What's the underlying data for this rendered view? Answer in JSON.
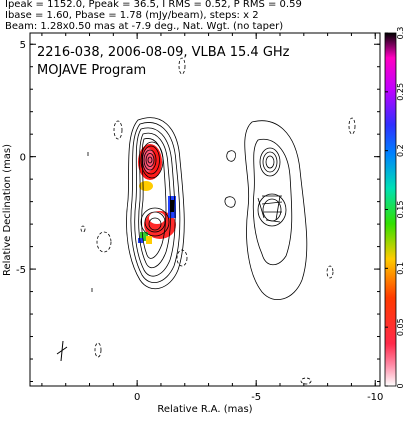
{
  "header": {
    "line1": "Ipeak = 1152.0, Ppeak = 36.5, I RMS = 0.52, P RMS = 0.59",
    "line2": "Ibase = 1.60, Pbase = 1.78 (mJy/beam), steps: x 2",
    "line3": "Beam: 1.28x0.50 mas at -7.9 deg., Nat. Wgt. (no taper)"
  },
  "panel_label": {
    "line1": "2216-038, 2006-08-09, VLBA 15.4 GHz",
    "line2": "MOJAVE Program"
  },
  "chart_data": {
    "type": "contour",
    "xlabel": "Relative R.A. (mas)",
    "ylabel": "Relative Declination (mas)",
    "xlim": [
      4.5,
      -10.2
    ],
    "ylim": [
      -10.2,
      5.5
    ],
    "x_ticks": [
      0,
      -5,
      -10
    ],
    "x_tick_labels": [
      "0",
      "-5",
      "-10"
    ],
    "y_ticks": [
      5,
      0,
      -5
    ],
    "y_tick_labels": [
      "5",
      "0",
      "-5"
    ],
    "colorbar": {
      "min": 0,
      "max": 0.3,
      "ticks": [
        0,
        0.05,
        0.1,
        0.15,
        0.2,
        0.25,
        0.3
      ],
      "tick_labels": [
        "0",
        "0.05",
        "0.1",
        "0.15",
        "0.2",
        "0.25",
        "0.3"
      ]
    },
    "contour_steps": "x 2",
    "beam": {
      "major_mas": 1.28,
      "minor_mas": 0.5,
      "pa_deg": -7.9
    }
  }
}
